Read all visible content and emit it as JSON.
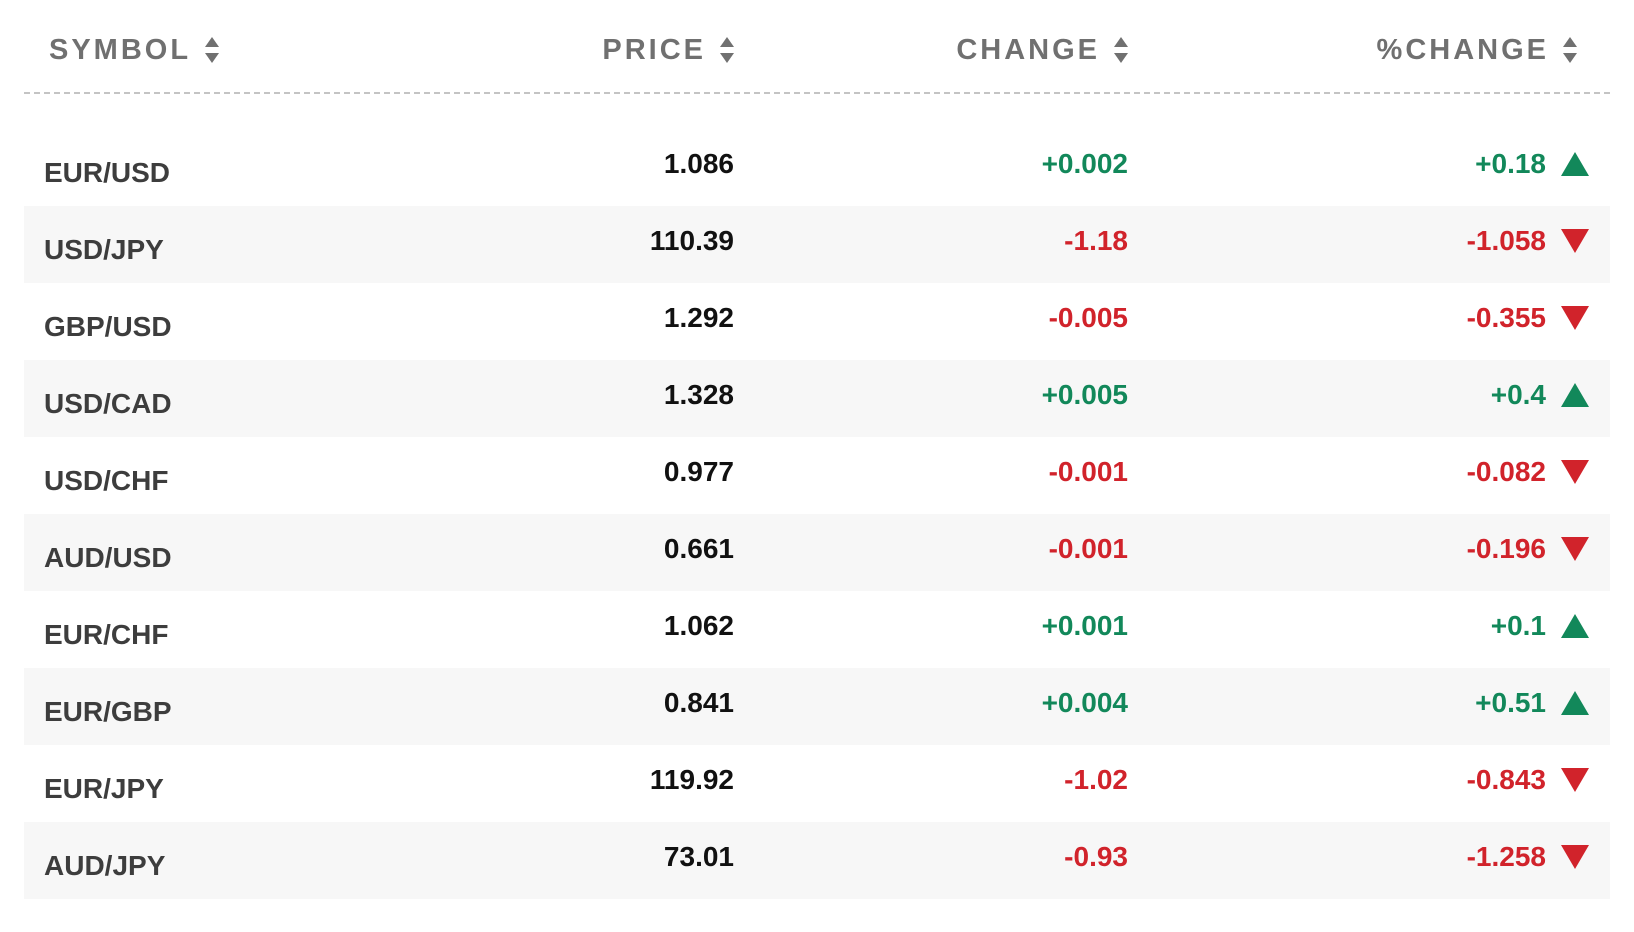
{
  "header": {
    "symbol_label": "SYMBOL",
    "price_label": "PRICE",
    "change_label": "CHANGE",
    "pct_change_label": "%CHANGE"
  },
  "colors": {
    "positive": "#12885a",
    "negative": "#d1232b",
    "header_text": "#707070"
  },
  "icons": {
    "sort": "sort-arrows-icon",
    "up": "triangle-up-icon",
    "down": "triangle-down-icon"
  },
  "rows": [
    {
      "symbol": "EUR/USD",
      "price": "1.086",
      "change": "+0.002",
      "pct_change": "+0.18",
      "direction": "up"
    },
    {
      "symbol": "USD/JPY",
      "price": "110.39",
      "change": "-1.18",
      "pct_change": "-1.058",
      "direction": "down"
    },
    {
      "symbol": "GBP/USD",
      "price": "1.292",
      "change": "-0.005",
      "pct_change": "-0.355",
      "direction": "down"
    },
    {
      "symbol": "USD/CAD",
      "price": "1.328",
      "change": "+0.005",
      "pct_change": "+0.4",
      "direction": "up"
    },
    {
      "symbol": "USD/CHF",
      "price": "0.977",
      "change": "-0.001",
      "pct_change": "-0.082",
      "direction": "down"
    },
    {
      "symbol": "AUD/USD",
      "price": "0.661",
      "change": "-0.001",
      "pct_change": "-0.196",
      "direction": "down"
    },
    {
      "symbol": "EUR/CHF",
      "price": "1.062",
      "change": "+0.001",
      "pct_change": "+0.1",
      "direction": "up"
    },
    {
      "symbol": "EUR/GBP",
      "price": "0.841",
      "change": "+0.004",
      "pct_change": "+0.51",
      "direction": "up"
    },
    {
      "symbol": "EUR/JPY",
      "price": "119.92",
      "change": "-1.02",
      "pct_change": "-0.843",
      "direction": "down"
    },
    {
      "symbol": "AUD/JPY",
      "price": "73.01",
      "change": "-0.93",
      "pct_change": "-1.258",
      "direction": "down"
    }
  ]
}
